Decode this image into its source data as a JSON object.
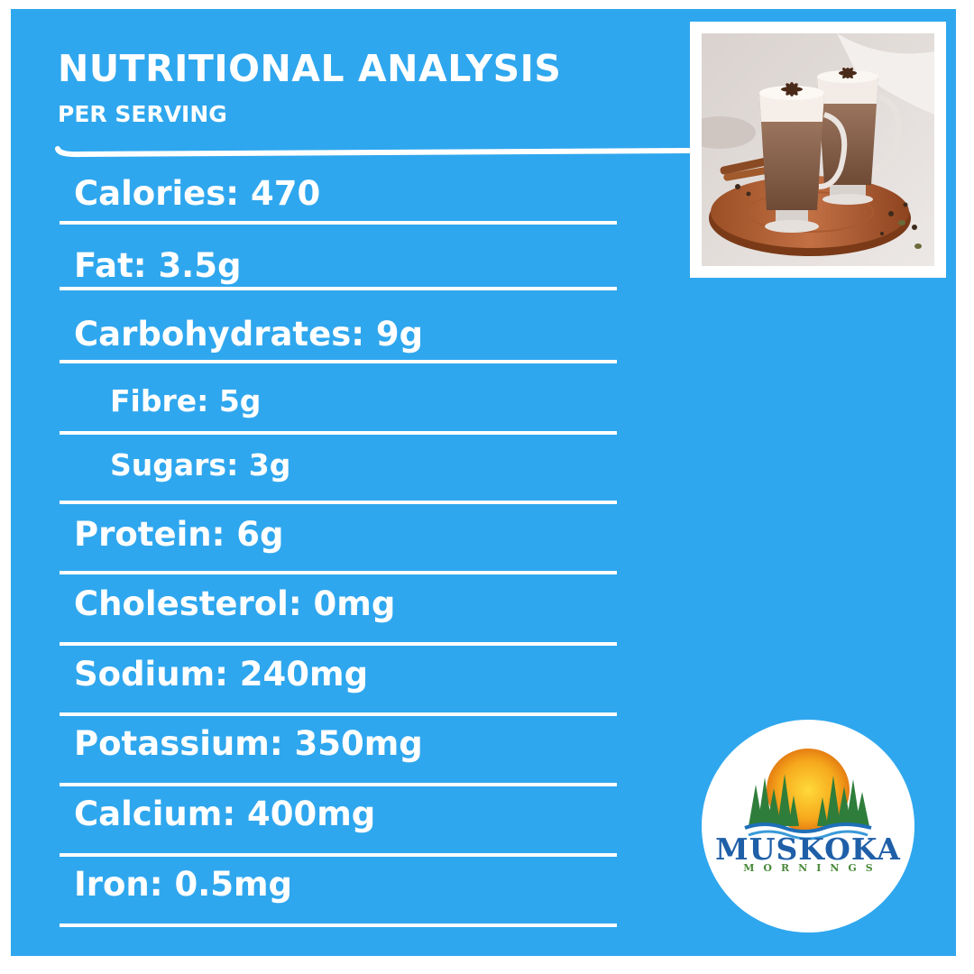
{
  "header": {
    "title": "NUTRITIONAL ANALYSIS",
    "subtitle": "PER SERVING"
  },
  "nutrients": [
    {
      "label": "Calories:  470"
    },
    {
      "label": "Fat: 3.5g"
    },
    {
      "label": "Carbohydrates: 9g"
    },
    {
      "label": "Fibre: 5g"
    },
    {
      "label": "Sugars: 3g"
    },
    {
      "label": "Protein: 6g"
    },
    {
      "label": "Cholesterol: 0mg"
    },
    {
      "label": "Sodium: 240mg"
    },
    {
      "label": "Potassium: 350mg"
    },
    {
      "label": "Calcium: 400mg"
    },
    {
      "label": "Iron: 0.5mg"
    }
  ],
  "logo": {
    "name": "MUSKOKA",
    "tagline": "MORNINGS",
    "name_color": "#1f5fa8",
    "tagline_color": "#4a8a3a"
  },
  "colors": {
    "background": "#2fa7ee",
    "text": "#ffffff"
  },
  "icons": {
    "photo": "chai-latte-photo",
    "logo": "muskoka-mornings-logo"
  }
}
